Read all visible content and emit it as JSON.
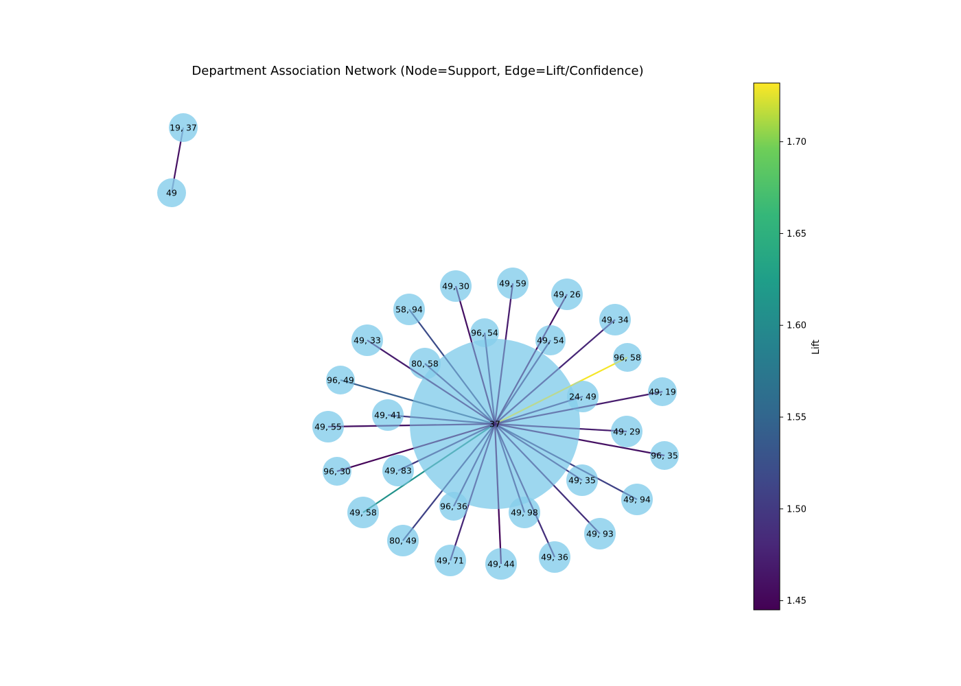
{
  "chart_data": {
    "type": "network",
    "title": "Department Association Network (Node=Support, Edge=Lift/Confidence)",
    "node_color": "#87CEEB",
    "colorbar": {
      "label": "Lift",
      "colormap": "viridis",
      "vmin": 1.445,
      "vmax": 1.732,
      "ticks": [
        "1.45",
        "1.50",
        "1.55",
        "1.60",
        "1.65",
        "1.70"
      ]
    },
    "hub": "37",
    "edges": [
      {
        "source": "19, 37",
        "target": "49",
        "lift": 1.46
      },
      {
        "source": "37",
        "target": "96, 58",
        "lift": 1.73
      },
      {
        "source": "37",
        "target": "49, 58",
        "lift": 1.61
      },
      {
        "source": "37",
        "target": "96, 49",
        "lift": 1.54
      },
      {
        "source": "37",
        "target": "58, 94",
        "lift": 1.52
      },
      {
        "source": "37",
        "target": "49, 94",
        "lift": 1.51
      },
      {
        "source": "37",
        "target": "80, 49",
        "lift": 1.51
      },
      {
        "source": "37",
        "target": "49, 36",
        "lift": 1.49
      },
      {
        "source": "37",
        "target": "49, 93",
        "lift": 1.49
      },
      {
        "source": "37",
        "target": "49, 71",
        "lift": 1.48
      },
      {
        "source": "37",
        "target": "49, 34",
        "lift": 1.48
      },
      {
        "source": "37",
        "target": "49, 19",
        "lift": 1.47
      },
      {
        "source": "37",
        "target": "49, 33",
        "lift": 1.47
      },
      {
        "source": "37",
        "target": "49, 29",
        "lift": 1.47
      },
      {
        "source": "37",
        "target": "49, 59",
        "lift": 1.47
      },
      {
        "source": "37",
        "target": "49, 26",
        "lift": 1.46
      },
      {
        "source": "37",
        "target": "49, 30",
        "lift": 1.46
      },
      {
        "source": "37",
        "target": "49, 55",
        "lift": 1.46
      },
      {
        "source": "37",
        "target": "96, 35",
        "lift": 1.46
      },
      {
        "source": "37",
        "target": "49, 44",
        "lift": 1.45
      },
      {
        "source": "37",
        "target": "96, 30",
        "lift": 1.45
      },
      {
        "source": "37",
        "target": "49, 41",
        "lift": 1.5
      },
      {
        "source": "37",
        "target": "49, 83",
        "lift": 1.5
      },
      {
        "source": "37",
        "target": "96, 36",
        "lift": 1.5
      },
      {
        "source": "37",
        "target": "49, 98",
        "lift": 1.5
      },
      {
        "source": "37",
        "target": "49, 35",
        "lift": 1.5
      },
      {
        "source": "37",
        "target": "24, 49",
        "lift": 1.5
      },
      {
        "source": "37",
        "target": "49, 54",
        "lift": 1.5
      },
      {
        "source": "37",
        "target": "96, 54",
        "lift": 1.5
      },
      {
        "source": "37",
        "target": "80, 58",
        "lift": 1.5
      }
    ]
  }
}
